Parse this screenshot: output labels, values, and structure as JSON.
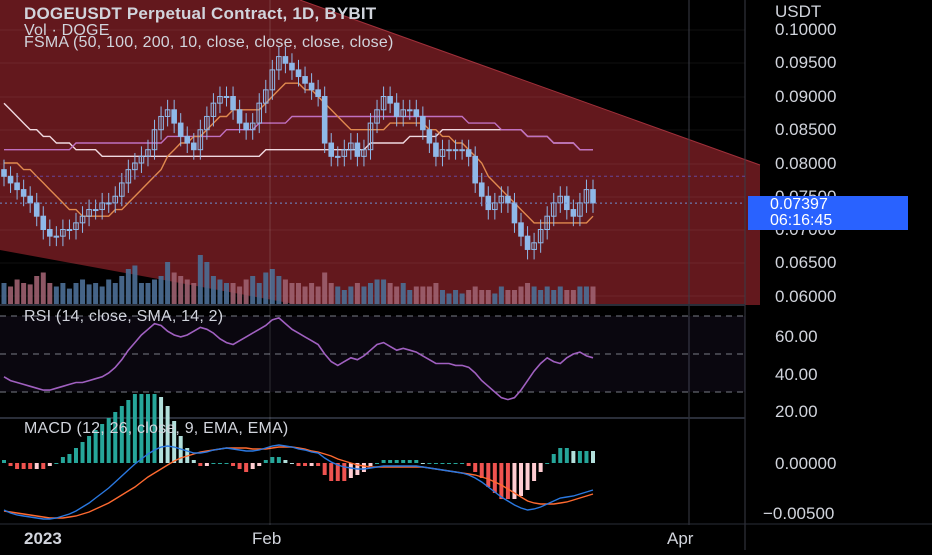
{
  "header": {
    "title": "DOGEUSDT Perpetual Contract, 1D, BYBIT",
    "volume_label": "Vol · DOGE",
    "fsma_label": "FSMA (50, 100, 200, 10, close, close, close, close)"
  },
  "price_axis": {
    "currency": "USDT",
    "ticks": [
      "0.10000",
      "0.09500",
      "0.09000",
      "0.08500",
      "0.08000",
      "0.07500",
      "0.07000",
      "0.06500",
      "0.06000"
    ],
    "current_price": "0.07397",
    "countdown": "06:16:45"
  },
  "rsi_panel": {
    "label": "RSI (14, close, SMA, 14, 2)",
    "ticks": [
      "60.00",
      "40.00",
      "20.00"
    ]
  },
  "macd_panel": {
    "label": "MACD (12, 26, close, 9, EMA, EMA)",
    "ticks": [
      "0.00000",
      "−0.00500"
    ]
  },
  "time_axis": {
    "ticks": [
      "2023",
      "Feb",
      "Apr"
    ]
  },
  "colors": {
    "background": "#000000",
    "channel_fill": "#6b1a1f",
    "candle": "#8fb8e8",
    "sma_fast": "#e0894f",
    "sma_mid": "#f0d8e0",
    "sma_slow": "#c070c0",
    "rsi_line": "#a060c0",
    "macd_line": "#2a78e0",
    "signal_line": "#ff6a30",
    "hist_up": "#26a69a",
    "hist_down": "#ef5350",
    "price_tag": "#2962ff"
  },
  "chart_data": [
    {
      "type": "candlestick",
      "title": "DOGEUSDT Perpetual Contract, 1D, BYBIT",
      "ylim": [
        0.06,
        0.1
      ],
      "x_ticks": [
        "2023",
        "Feb",
        "Apr"
      ],
      "close": [
        0.078,
        0.077,
        0.076,
        0.075,
        0.074,
        0.072,
        0.07,
        0.069,
        0.069,
        0.07,
        0.07,
        0.071,
        0.072,
        0.073,
        0.073,
        0.074,
        0.074,
        0.075,
        0.077,
        0.079,
        0.08,
        0.081,
        0.082,
        0.085,
        0.087,
        0.088,
        0.086,
        0.084,
        0.083,
        0.082,
        0.085,
        0.087,
        0.089,
        0.09,
        0.09,
        0.088,
        0.086,
        0.085,
        0.086,
        0.089,
        0.091,
        0.094,
        0.096,
        0.095,
        0.094,
        0.093,
        0.092,
        0.091,
        0.09,
        0.083,
        0.081,
        0.081,
        0.082,
        0.083,
        0.081,
        0.082,
        0.086,
        0.088,
        0.09,
        0.089,
        0.087,
        0.088,
        0.088,
        0.087,
        0.085,
        0.083,
        0.081,
        0.082,
        0.082,
        0.082,
        0.082,
        0.081,
        0.077,
        0.075,
        0.073,
        0.074,
        0.075,
        0.074,
        0.071,
        0.069,
        0.067,
        0.068,
        0.07,
        0.072,
        0.074,
        0.075,
        0.073,
        0.072,
        0.074,
        0.076,
        0.074
      ],
      "sma_50": [
        0.08,
        0.08,
        0.08,
        0.079,
        0.079,
        0.078,
        0.077,
        0.076,
        0.075,
        0.074,
        0.073,
        0.073,
        0.072,
        0.072,
        0.072,
        0.072,
        0.072,
        0.073,
        0.073,
        0.074,
        0.075,
        0.076,
        0.077,
        0.078,
        0.079,
        0.081,
        0.082,
        0.083,
        0.083,
        0.084,
        0.084,
        0.085,
        0.086,
        0.087,
        0.087,
        0.088,
        0.088,
        0.088,
        0.088,
        0.088,
        0.089,
        0.09,
        0.091,
        0.092,
        0.092,
        0.092,
        0.091,
        0.091,
        0.09,
        0.089,
        0.088,
        0.087,
        0.086,
        0.085,
        0.085,
        0.085,
        0.085,
        0.085,
        0.085,
        0.086,
        0.086,
        0.086,
        0.086,
        0.086,
        0.086,
        0.085,
        0.085,
        0.084,
        0.084,
        0.083,
        0.083,
        0.082,
        0.081,
        0.08,
        0.078,
        0.077,
        0.076,
        0.075,
        0.074,
        0.073,
        0.072,
        0.071,
        0.071,
        0.071,
        0.071,
        0.071,
        0.071,
        0.071,
        0.071,
        0.071,
        0.072
      ],
      "sma_100": [
        0.089,
        0.088,
        0.087,
        0.086,
        0.085,
        0.085,
        0.084,
        0.084,
        0.083,
        0.083,
        0.083,
        0.082,
        0.082,
        0.082,
        0.082,
        0.081,
        0.081,
        0.081,
        0.081,
        0.081,
        0.081,
        0.081,
        0.081,
        0.081,
        0.081,
        0.081,
        0.081,
        0.081,
        0.081,
        0.081,
        0.081,
        0.081,
        0.081,
        0.081,
        0.081,
        0.081,
        0.081,
        0.081,
        0.081,
        0.081,
        0.082,
        0.082,
        0.082,
        0.082,
        0.082,
        0.082,
        0.082,
        0.082,
        0.082,
        0.082,
        0.082,
        0.082,
        0.082,
        0.082,
        0.082,
        0.082,
        0.083,
        0.083,
        0.083,
        0.083,
        0.083,
        0.083,
        0.084,
        0.084,
        0.084,
        0.084,
        0.084,
        0.085,
        0.085,
        0.085,
        0.085,
        0.085,
        0.085,
        0.085,
        0.085,
        0.085,
        0.085,
        0.085,
        0.085,
        0.085,
        0.084,
        0.084,
        0.084,
        0.084,
        0.083,
        0.083,
        0.083,
        0.083,
        0.082,
        0.082,
        0.082
      ],
      "sma_200": [
        0.082,
        0.082,
        0.082,
        0.082,
        0.082,
        0.082,
        0.082,
        0.082,
        0.082,
        0.082,
        0.082,
        0.083,
        0.083,
        0.083,
        0.083,
        0.083,
        0.083,
        0.083,
        0.083,
        0.083,
        0.083,
        0.083,
        0.083,
        0.083,
        0.083,
        0.084,
        0.084,
        0.084,
        0.084,
        0.084,
        0.084,
        0.084,
        0.084,
        0.084,
        0.085,
        0.085,
        0.085,
        0.085,
        0.085,
        0.086,
        0.086,
        0.086,
        0.086,
        0.086,
        0.087,
        0.087,
        0.087,
        0.087,
        0.087,
        0.087,
        0.087,
        0.087,
        0.087,
        0.087,
        0.087,
        0.087,
        0.087,
        0.087,
        0.087,
        0.087,
        0.087,
        0.087,
        0.087,
        0.087,
        0.087,
        0.087,
        0.087,
        0.087,
        0.087,
        0.087,
        0.087,
        0.086,
        0.086,
        0.086,
        0.086,
        0.086,
        0.085,
        0.085,
        0.085,
        0.085,
        0.084,
        0.084,
        0.084,
        0.084,
        0.083,
        0.083,
        0.083,
        0.083,
        0.082,
        0.082,
        0.082
      ],
      "sma_10": [
        0.078,
        0.078,
        0.078,
        0.078,
        0.078,
        0.078,
        0.078,
        0.078,
        0.078,
        0.078,
        0.078,
        0.078,
        0.078,
        0.078,
        0.078,
        0.078,
        0.078,
        0.078,
        0.078,
        0.078,
        0.078,
        0.078,
        0.078,
        0.078,
        0.078,
        0.078,
        0.078,
        0.078,
        0.078,
        0.078,
        0.078,
        0.078,
        0.078,
        0.078,
        0.078,
        0.078,
        0.078,
        0.078,
        0.078,
        0.078,
        0.078,
        0.078,
        0.078,
        0.078,
        0.078,
        0.078,
        0.078,
        0.078,
        0.078,
        0.078,
        0.078,
        0.078,
        0.078,
        0.078,
        0.078,
        0.078,
        0.078,
        0.078,
        0.078,
        0.078,
        0.078,
        0.078,
        0.078,
        0.078,
        0.078,
        0.078,
        0.078,
        0.078,
        0.078,
        0.078,
        0.078,
        0.078,
        0.078,
        0.078,
        0.078,
        0.078,
        0.078,
        0.078,
        0.078,
        0.078,
        0.078,
        0.078,
        0.078,
        0.078,
        0.078,
        0.078,
        0.078,
        0.078,
        0.078,
        0.078,
        0.078
      ],
      "volume": [
        0.3,
        0.25,
        0.35,
        0.3,
        0.28,
        0.4,
        0.45,
        0.3,
        0.25,
        0.3,
        0.22,
        0.3,
        0.35,
        0.28,
        0.3,
        0.25,
        0.35,
        0.3,
        0.4,
        0.5,
        0.55,
        0.3,
        0.3,
        0.35,
        0.4,
        0.6,
        0.45,
        0.4,
        0.35,
        0.3,
        0.7,
        0.6,
        0.4,
        0.35,
        0.3,
        0.3,
        0.25,
        0.35,
        0.4,
        0.3,
        0.45,
        0.5,
        0.4,
        0.35,
        0.3,
        0.3,
        0.25,
        0.3,
        0.25,
        0.45,
        0.3,
        0.25,
        0.2,
        0.25,
        0.3,
        0.25,
        0.3,
        0.35,
        0.35,
        0.3,
        0.25,
        0.3,
        0.2,
        0.25,
        0.25,
        0.25,
        0.3,
        0.2,
        0.15,
        0.2,
        0.15,
        0.2,
        0.25,
        0.2,
        0.2,
        0.15,
        0.25,
        0.2,
        0.2,
        0.25,
        0.3,
        0.25,
        0.2,
        0.25,
        0.2,
        0.25,
        0.2,
        0.2,
        0.25,
        0.25,
        0.25
      ]
    },
    {
      "type": "line",
      "title": "RSI (14, close, SMA, 14, 2)",
      "ylim": [
        20,
        70
      ],
      "y_ticks": [
        "60.00",
        "40.00",
        "20.00"
      ],
      "series": [
        {
          "values": [
            38,
            36,
            35,
            34,
            33,
            32,
            31,
            31,
            32,
            33,
            34,
            35,
            35,
            36,
            37,
            38,
            40,
            43,
            47,
            52,
            56,
            60,
            63,
            66,
            65,
            62,
            60,
            59,
            60,
            62,
            64,
            63,
            61,
            58,
            56,
            55,
            57,
            59,
            61,
            63,
            65,
            68,
            69,
            66,
            63,
            61,
            59,
            57,
            55,
            50,
            46,
            44,
            46,
            48,
            47,
            49,
            52,
            55,
            56,
            54,
            52,
            53,
            52,
            51,
            49,
            47,
            45,
            45,
            45,
            44,
            44,
            43,
            40,
            36,
            33,
            30,
            27,
            26,
            27,
            31,
            36,
            41,
            45,
            48,
            46,
            45,
            48,
            50,
            51,
            49,
            48
          ]
        }
      ]
    },
    {
      "type": "bar",
      "title": "MACD (12, 26, close, 9, EMA, EMA)",
      "ylim": [
        -0.0065,
        0.0025
      ],
      "y_ticks": [
        "0.00000",
        "−0.00500"
      ],
      "series": [
        {
          "values": [
            -0.0047,
            -0.005,
            -0.0052,
            -0.0053,
            -0.0054,
            -0.0055,
            -0.0056,
            -0.0056,
            -0.0055,
            -0.0053,
            -0.0051,
            -0.0048,
            -0.0044,
            -0.004,
            -0.0035,
            -0.003,
            -0.0025,
            -0.0019,
            -0.0013,
            -0.0007,
            -0.0001,
            0.0004,
            0.0009,
            0.0013,
            0.0016,
            0.0017,
            0.0016,
            0.0014,
            0.0012,
            0.001,
            0.001,
            0.0011,
            0.0013,
            0.0014,
            0.0015,
            0.0014,
            0.0013,
            0.0012,
            0.0012,
            0.0013,
            0.0015,
            0.0017,
            0.0018,
            0.0017,
            0.0016,
            0.0014,
            0.0013,
            0.0011,
            0.001,
            0.0005,
            0.0001,
            -0.0002,
            -0.0004,
            -0.0005,
            -0.0006,
            -0.0006,
            -0.0005,
            -0.0004,
            -0.0003,
            -0.0003,
            -0.0003,
            -0.0003,
            -0.0003,
            -0.0003,
            -0.0004,
            -0.0005,
            -0.0006,
            -0.0007,
            -0.0008,
            -0.0009,
            -0.001,
            -0.0012,
            -0.0015,
            -0.0019,
            -0.0024,
            -0.0029,
            -0.0034,
            -0.0038,
            -0.0042,
            -0.0045,
            -0.0047,
            -0.0046,
            -0.0044,
            -0.0041,
            -0.0038,
            -0.0035,
            -0.0034,
            -0.0033,
            -0.0031,
            -0.0029,
            -0.0027
          ]
        },
        {
          "values": [
            -0.0048,
            -0.0049,
            -0.005,
            -0.0051,
            -0.0052,
            -0.0053,
            -0.0054,
            -0.0055,
            -0.0055,
            -0.0055,
            -0.0054,
            -0.0053,
            -0.0051,
            -0.0049,
            -0.0046,
            -0.0043,
            -0.004,
            -0.0036,
            -0.0032,
            -0.0028,
            -0.0024,
            -0.0019,
            -0.0014,
            -0.001,
            -0.0006,
            -0.0002,
            0.0002,
            0.0005,
            0.0007,
            0.0009,
            0.0011,
            0.0012,
            0.0013,
            0.0014,
            0.0015,
            0.0015,
            0.0015,
            0.0015,
            0.0014,
            0.0014,
            0.0014,
            0.0015,
            0.0016,
            0.0016,
            0.0016,
            0.0015,
            0.0014,
            0.0012,
            0.0011,
            0.0009,
            0.0007,
            0.0004,
            0.0002,
            0.0,
            -0.0002,
            -0.0003,
            -0.0004,
            -0.0004,
            -0.0004,
            -0.0004,
            -0.0004,
            -0.0004,
            -0.0004,
            -0.0004,
            -0.0004,
            -0.0005,
            -0.0006,
            -0.0007,
            -0.0008,
            -0.0009,
            -0.001,
            -0.0011,
            -0.0012,
            -0.0014,
            -0.0016,
            -0.0019,
            -0.0022,
            -0.0026,
            -0.003,
            -0.0034,
            -0.0038,
            -0.004,
            -0.0041,
            -0.0041,
            -0.0041,
            -0.004,
            -0.0039,
            -0.0037,
            -0.0035,
            -0.0033,
            -0.0031
          ]
        }
      ]
    }
  ]
}
